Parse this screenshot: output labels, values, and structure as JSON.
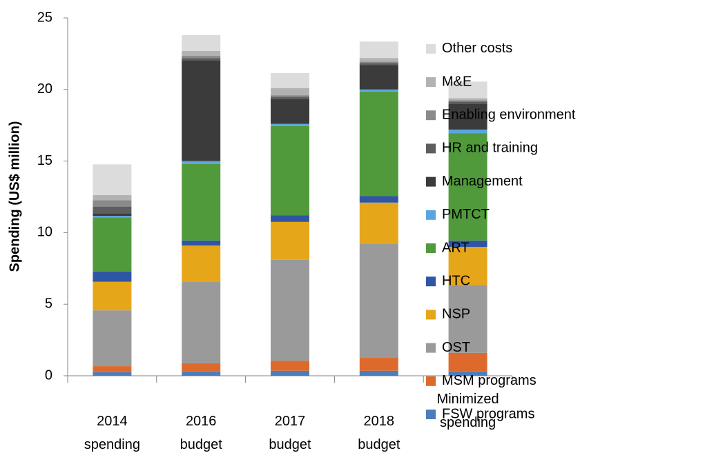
{
  "chart_data": {
    "type": "stacked_bar",
    "y_label": "Spending (US$ million)",
    "categories": [
      "2014 spending",
      "2016 budget",
      "2017 budget",
      "2018 budget",
      "Minimized spending"
    ],
    "ylim": [
      0,
      25
    ],
    "yticks": [
      0,
      5,
      10,
      15,
      20,
      25
    ],
    "series": [
      {
        "name": "FSW programs",
        "color": "#4a7ebb",
        "values": [
          0.25,
          0.3,
          0.35,
          0.35,
          0.3
        ]
      },
      {
        "name": "MSM programs",
        "color": "#dd6a2c",
        "values": [
          0.42,
          0.57,
          0.7,
          0.9,
          1.3
        ]
      },
      {
        "name": "OST",
        "color": "#9a9a9a",
        "values": [
          3.9,
          5.68,
          7.05,
          7.95,
          4.75
        ]
      },
      {
        "name": "NSP",
        "color": "#e6a61a",
        "values": [
          2.0,
          2.55,
          2.65,
          2.9,
          2.65
        ]
      },
      {
        "name": "HTC",
        "color": "#2f55a5",
        "values": [
          0.7,
          0.35,
          0.45,
          0.45,
          0.45
        ]
      },
      {
        "name": "ART",
        "color": "#519a3c",
        "values": [
          3.8,
          5.35,
          6.25,
          7.3,
          7.5
        ]
      },
      {
        "name": "PMTCT",
        "color": "#5aa5df",
        "values": [
          0.1,
          0.2,
          0.15,
          0.15,
          0.25
        ]
      },
      {
        "name": "Management",
        "color": "#3b3b3b",
        "values": [
          0.15,
          7.05,
          1.75,
          1.7,
          1.8
        ]
      },
      {
        "name": "HR and training",
        "color": "#5e5e5e",
        "values": [
          0.5,
          0.15,
          0.15,
          0.15,
          0.15
        ]
      },
      {
        "name": "Enabling environment",
        "color": "#8a8a8a",
        "values": [
          0.45,
          0.15,
          0.1,
          0.1,
          0.1
        ]
      },
      {
        "name": "M&E",
        "color": "#b2b2b2",
        "values": [
          0.35,
          0.35,
          0.5,
          0.25,
          0.15
        ]
      },
      {
        "name": "Other costs",
        "color": "#dcdcdc",
        "values": [
          2.15,
          1.1,
          1.05,
          1.15,
          1.15
        ]
      }
    ]
  }
}
